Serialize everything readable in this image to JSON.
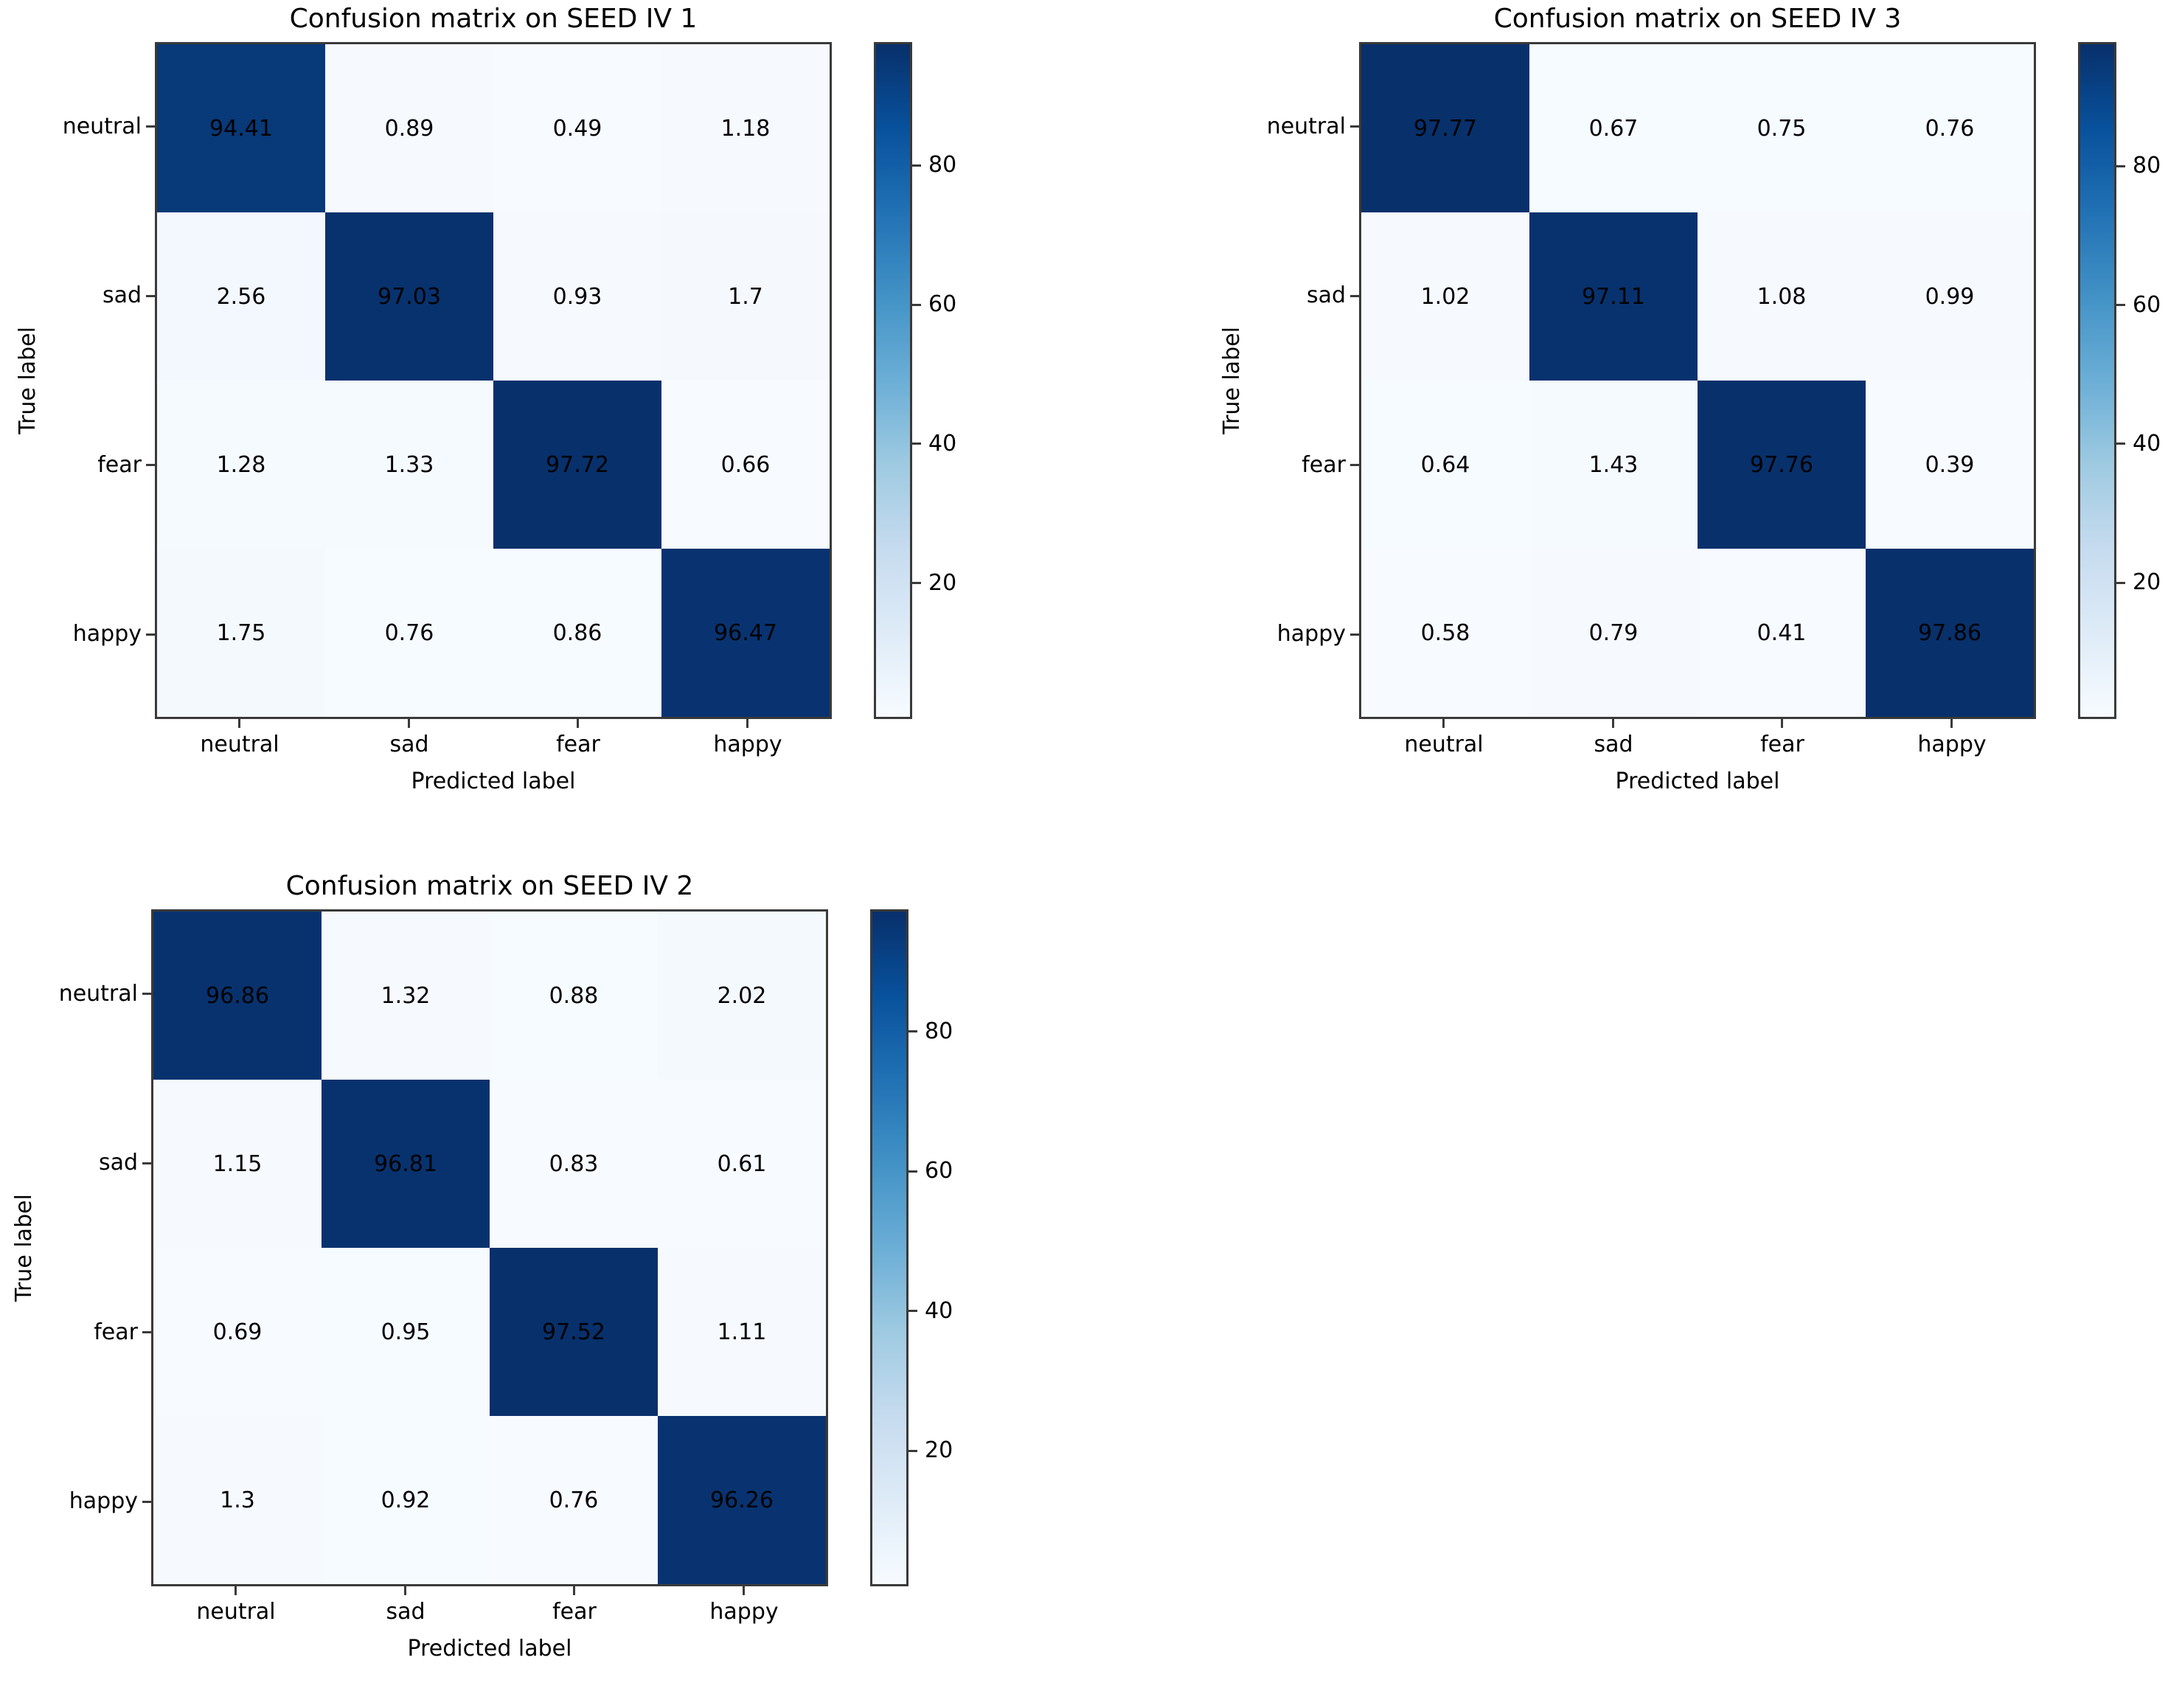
{
  "chart_data": [
    {
      "type": "heatmap",
      "position": "top-left",
      "title": "Confusion matrix on SEED IV 1",
      "xlabel": "Predicted label",
      "ylabel": "True label",
      "x_tick_labels": [
        "neutral",
        "sad",
        "fear",
        "happy"
      ],
      "y_tick_labels": [
        "neutral",
        "sad",
        "fear",
        "happy"
      ],
      "matrix": [
        [
          94.41,
          0.89,
          0.49,
          1.18
        ],
        [
          2.56,
          97.03,
          0.93,
          1.7
        ],
        [
          1.28,
          1.33,
          97.72,
          0.66
        ],
        [
          1.75,
          0.76,
          0.86,
          96.47
        ]
      ],
      "colorbar": {
        "ticks": [
          20,
          40,
          60,
          80
        ],
        "cmap": "Blues",
        "gradient_stops": [
          "#f7fbff",
          "#deebf7",
          "#c6dbef",
          "#9ecae1",
          "#6baed6",
          "#4292c6",
          "#2171b5",
          "#08519c",
          "#08306b"
        ]
      },
      "grid": false,
      "legend": false
    },
    {
      "type": "heatmap",
      "position": "top-right",
      "title": "Confusion matrix on SEED IV 3",
      "xlabel": "Predicted label",
      "ylabel": "True label",
      "x_tick_labels": [
        "neutral",
        "sad",
        "fear",
        "happy"
      ],
      "y_tick_labels": [
        "neutral",
        "sad",
        "fear",
        "happy"
      ],
      "matrix": [
        [
          97.77,
          0.67,
          0.75,
          0.76
        ],
        [
          1.02,
          97.11,
          1.08,
          0.99
        ],
        [
          0.64,
          1.43,
          97.76,
          0.39
        ],
        [
          0.58,
          0.79,
          0.41,
          97.86
        ]
      ],
      "colorbar": {
        "ticks": [
          20,
          40,
          60,
          80
        ],
        "cmap": "Blues",
        "gradient_stops": [
          "#f7fbff",
          "#deebf7",
          "#c6dbef",
          "#9ecae1",
          "#6baed6",
          "#4292c6",
          "#2171b5",
          "#08519c",
          "#08306b"
        ]
      },
      "grid": false,
      "legend": false
    },
    {
      "type": "heatmap",
      "position": "bottom-left",
      "title": "Confusion matrix on SEED IV 2",
      "xlabel": "Predicted label",
      "ylabel": "True label",
      "x_tick_labels": [
        "neutral",
        "sad",
        "fear",
        "happy"
      ],
      "y_tick_labels": [
        "neutral",
        "sad",
        "fear",
        "happy"
      ],
      "matrix": [
        [
          96.86,
          1.32,
          0.88,
          2.02
        ],
        [
          1.15,
          96.81,
          0.83,
          0.61
        ],
        [
          0.69,
          0.95,
          97.52,
          1.11
        ],
        [
          1.3,
          0.92,
          0.76,
          96.26
        ]
      ],
      "colorbar": {
        "ticks": [
          20,
          40,
          60,
          80
        ],
        "cmap": "Blues",
        "gradient_stops": [
          "#f7fbff",
          "#deebf7",
          "#c6dbef",
          "#9ecae1",
          "#6baed6",
          "#4292c6",
          "#2171b5",
          "#08519c",
          "#08306b"
        ]
      },
      "grid": false,
      "legend": false
    }
  ],
  "colors": {
    "diagonal_cell": "#0c3a74",
    "off_diagonal_cell": "#f6fafe",
    "axis_spine": "#3a3a3a",
    "text": "#000000",
    "background": "#ffffff"
  }
}
